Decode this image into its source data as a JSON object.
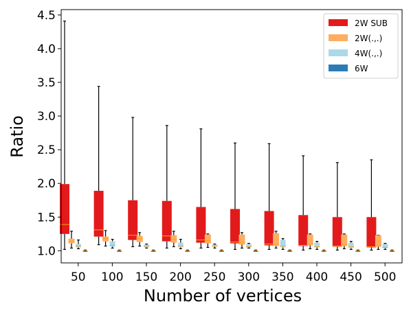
{
  "chart_data": {
    "type": "box",
    "xlabel": "Number of vertices",
    "ylabel": "Ratio",
    "ylim": [
      0.82,
      4.58
    ],
    "yticks": [
      "1.0",
      "1.5",
      "2.0",
      "2.5",
      "3.0",
      "3.5",
      "4.0",
      "4.5"
    ],
    "categories": [
      "50",
      "100",
      "150",
      "200",
      "250",
      "300",
      "350",
      "400",
      "450",
      "500"
    ],
    "legend_position": "top-right",
    "series": [
      {
        "name": "2W SUB",
        "color": "#e31a1c",
        "boxes": [
          {
            "min": 1.02,
            "q1": 1.25,
            "median": 1.39,
            "q3": 1.99,
            "max": 4.41
          },
          {
            "min": 1.09,
            "q1": 1.21,
            "median": 1.31,
            "q3": 1.89,
            "max": 3.44
          },
          {
            "min": 1.06,
            "q1": 1.16,
            "median": 1.23,
            "q3": 1.75,
            "max": 2.98
          },
          {
            "min": 1.04,
            "q1": 1.14,
            "median": 1.22,
            "q3": 1.74,
            "max": 2.86
          },
          {
            "min": 1.04,
            "q1": 1.12,
            "median": 1.16,
            "q3": 1.65,
            "max": 2.81
          },
          {
            "min": 1.02,
            "q1": 1.11,
            "median": 1.13,
            "q3": 1.62,
            "max": 2.6
          },
          {
            "min": 1.02,
            "q1": 1.08,
            "median": 1.1,
            "q3": 1.59,
            "max": 2.59
          },
          {
            "min": 1.01,
            "q1": 1.07,
            "median": 1.08,
            "q3": 1.53,
            "max": 2.41
          },
          {
            "min": 1.01,
            "q1": 1.06,
            "median": 1.07,
            "q3": 1.5,
            "max": 2.31
          },
          {
            "min": 1.01,
            "q1": 1.05,
            "median": 1.06,
            "q3": 1.5,
            "max": 2.35
          }
        ]
      },
      {
        "name": "2W(.,.)",
        "color": "#fdae61",
        "boxes": [
          {
            "min": 1.04,
            "q1": 1.11,
            "median": 1.14,
            "q3": 1.18,
            "max": 1.29
          },
          {
            "min": 1.07,
            "q1": 1.14,
            "median": 1.18,
            "q3": 1.21,
            "max": 1.3
          },
          {
            "min": 1.07,
            "q1": 1.13,
            "median": 1.18,
            "q3": 1.22,
            "max": 1.27
          },
          {
            "min": 1.06,
            "q1": 1.12,
            "median": 1.17,
            "q3": 1.23,
            "max": 1.29
          },
          {
            "min": 1.05,
            "q1": 1.11,
            "median": 1.15,
            "q3": 1.24,
            "max": 1.25
          },
          {
            "min": 1.04,
            "q1": 1.09,
            "median": 1.12,
            "q3": 1.24,
            "max": 1.27
          },
          {
            "min": 1.04,
            "q1": 1.07,
            "median": 1.1,
            "q3": 1.26,
            "max": 1.29
          },
          {
            "min": 1.03,
            "q1": 1.08,
            "median": 1.1,
            "q3": 1.24,
            "max": 1.25
          },
          {
            "min": 1.03,
            "q1": 1.07,
            "median": 1.09,
            "q3": 1.24,
            "max": 1.25
          },
          {
            "min": 1.02,
            "q1": 1.06,
            "median": 1.08,
            "q3": 1.23,
            "max": 1.23
          }
        ]
      },
      {
        "name": "4W(.,.)",
        "color": "#abd9e9",
        "boxes": [
          {
            "min": 1.03,
            "q1": 1.05,
            "median": 1.07,
            "q3": 1.1,
            "max": 1.16
          },
          {
            "min": 1.04,
            "q1": 1.06,
            "median": 1.08,
            "q3": 1.14,
            "max": 1.17
          },
          {
            "min": 1.04,
            "q1": 1.05,
            "median": 1.07,
            "q3": 1.09,
            "max": 1.1
          },
          {
            "min": 1.03,
            "q1": 1.05,
            "median": 1.07,
            "q3": 1.12,
            "max": 1.17
          },
          {
            "min": 1.04,
            "q1": 1.06,
            "median": 1.07,
            "q3": 1.09,
            "max": 1.1
          },
          {
            "min": 1.04,
            "q1": 1.05,
            "median": 1.06,
            "q3": 1.1,
            "max": 1.11
          },
          {
            "min": 1.02,
            "q1": 1.05,
            "median": 1.07,
            "q3": 1.16,
            "max": 1.18
          },
          {
            "min": 1.02,
            "q1": 1.05,
            "median": 1.06,
            "q3": 1.12,
            "max": 1.14
          },
          {
            "min": 1.02,
            "q1": 1.04,
            "median": 1.06,
            "q3": 1.12,
            "max": 1.14
          },
          {
            "min": 1.02,
            "q1": 1.04,
            "median": 1.05,
            "q3": 1.1,
            "max": 1.11
          }
        ]
      },
      {
        "name": "6W",
        "color": "#2c7bb6",
        "boxes": [
          {
            "min": 0.99,
            "q1": 0.99,
            "median": 1.0,
            "q3": 1.0,
            "max": 1.01
          },
          {
            "min": 0.99,
            "q1": 0.99,
            "median": 1.0,
            "q3": 1.0,
            "max": 1.01
          },
          {
            "min": 0.99,
            "q1": 0.99,
            "median": 1.0,
            "q3": 1.0,
            "max": 1.01
          },
          {
            "min": 0.99,
            "q1": 0.99,
            "median": 1.0,
            "q3": 1.0,
            "max": 1.01
          },
          {
            "min": 0.99,
            "q1": 0.99,
            "median": 1.0,
            "q3": 1.0,
            "max": 1.01
          },
          {
            "min": 0.99,
            "q1": 0.99,
            "median": 1.0,
            "q3": 1.0,
            "max": 1.01
          },
          {
            "min": 0.99,
            "q1": 0.99,
            "median": 1.0,
            "q3": 1.0,
            "max": 1.01
          },
          {
            "min": 0.99,
            "q1": 0.99,
            "median": 1.0,
            "q3": 1.0,
            "max": 1.01
          },
          {
            "min": 0.99,
            "q1": 0.99,
            "median": 1.0,
            "q3": 1.0,
            "max": 1.01
          },
          {
            "min": 0.99,
            "q1": 0.99,
            "median": 1.0,
            "q3": 1.0,
            "max": 1.01
          }
        ]
      }
    ]
  }
}
